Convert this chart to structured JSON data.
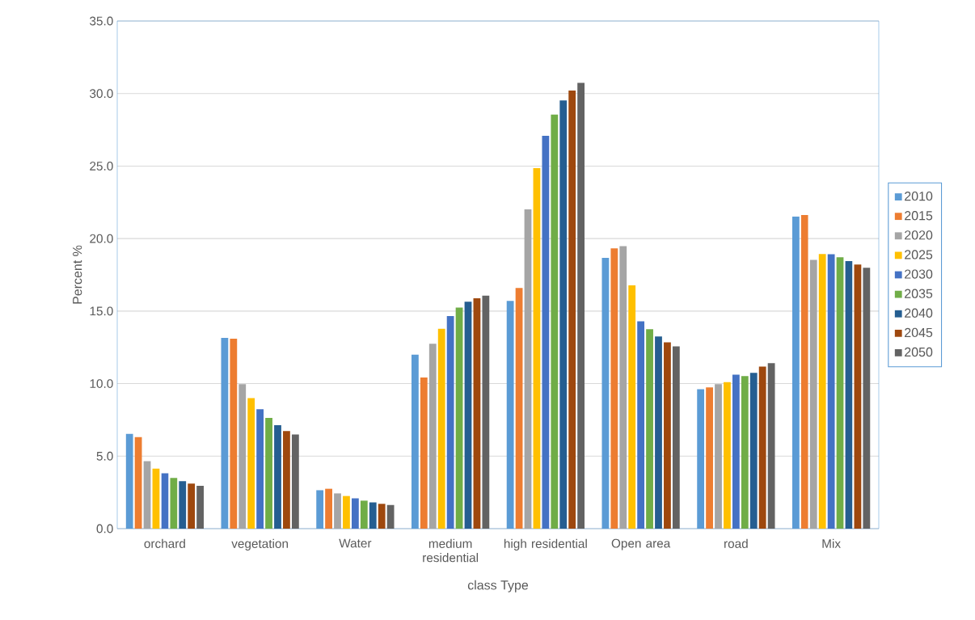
{
  "chart_data": {
    "type": "bar",
    "xlabel": "class Type",
    "ylabel": "Percent %",
    "categories": [
      "orchard",
      "vegetation",
      "Water",
      "medium residential",
      "high residential",
      "Open area",
      "road",
      "Mix"
    ],
    "series": [
      {
        "name": "2010",
        "color": "#5b9bd5",
        "values": [
          6.53,
          13.15,
          2.65,
          11.99,
          15.7,
          18.67,
          9.62,
          21.53
        ]
      },
      {
        "name": "2015",
        "color": "#ed7d31",
        "values": [
          6.31,
          13.09,
          2.75,
          10.42,
          16.59,
          19.32,
          9.74,
          21.63
        ]
      },
      {
        "name": "2020",
        "color": "#a5a5a5",
        "values": [
          4.66,
          9.96,
          2.43,
          12.75,
          22.01,
          19.48,
          9.96,
          18.53
        ]
      },
      {
        "name": "2025",
        "color": "#ffc000",
        "values": [
          4.14,
          9.0,
          2.25,
          13.78,
          24.86,
          16.77,
          10.1,
          18.94
        ]
      },
      {
        "name": "2030",
        "color": "#4472c4",
        "values": [
          3.82,
          8.23,
          2.09,
          14.66,
          27.09,
          14.3,
          10.62,
          18.92
        ]
      },
      {
        "name": "2035",
        "color": "#70ad47",
        "values": [
          3.49,
          7.63,
          1.93,
          15.24,
          28.55,
          13.75,
          10.52,
          18.71
        ]
      },
      {
        "name": "2040",
        "color": "#255e91",
        "values": [
          3.27,
          7.13,
          1.81,
          15.64,
          29.52,
          13.25,
          10.74,
          18.45
        ]
      },
      {
        "name": "2045",
        "color": "#9e480e",
        "values": [
          3.11,
          6.73,
          1.71,
          15.88,
          30.2,
          12.85,
          11.18,
          18.21
        ]
      },
      {
        "name": "2050",
        "color": "#636363",
        "values": [
          2.95,
          6.49,
          1.63,
          16.06,
          30.74,
          12.57,
          11.41,
          17.99
        ]
      }
    ],
    "ylim": [
      0,
      35
    ],
    "yticks": [
      {
        "value": 0,
        "label": "0.0"
      },
      {
        "value": 5,
        "label": "5.0"
      },
      {
        "value": 10,
        "label": "10.0"
      },
      {
        "value": 15,
        "label": "15.0"
      },
      {
        "value": 20,
        "label": "20.0"
      },
      {
        "value": 25,
        "label": "25.0"
      },
      {
        "value": 30,
        "label": "30.0"
      },
      {
        "value": 35,
        "label": "35.0"
      }
    ],
    "grid": "y",
    "legend": "right"
  }
}
